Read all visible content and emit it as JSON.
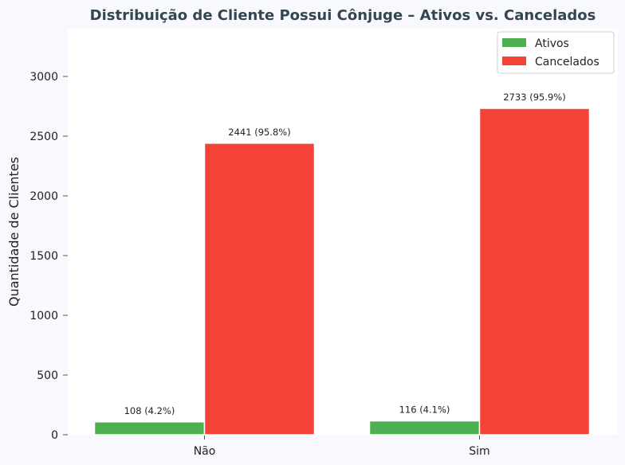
{
  "chart_data": {
    "type": "bar",
    "title": "Distribuição de Cliente Possui Cônjuge – Ativos vs. Cancelados",
    "xlabel": "",
    "ylabel": "Quantidade de Clientes",
    "categories": [
      "Não",
      "Sim"
    ],
    "series": [
      {
        "name": "Ativos",
        "color": "#4caf50",
        "values": [
          108,
          116
        ],
        "labels": [
          "108 (4.2%)",
          "116 (4.1%)"
        ]
      },
      {
        "name": "Cancelados",
        "color": "#f44336",
        "values": [
          2441,
          2733
        ],
        "labels": [
          "2441 (95.8%)",
          "2733 (95.9%)"
        ]
      }
    ],
    "yticks": [
      0,
      500,
      1000,
      1500,
      2000,
      2500,
      3000
    ],
    "ylim": [
      0,
      3400
    ],
    "grid": false,
    "legend_position": "top-right"
  }
}
